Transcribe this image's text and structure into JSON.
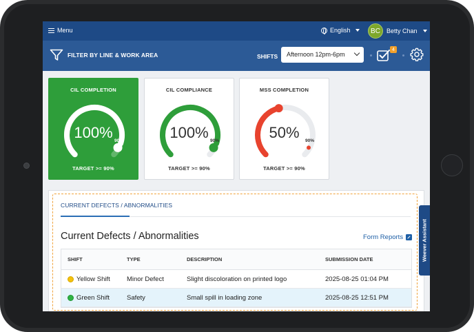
{
  "topbar": {
    "menu_label": "Menu",
    "language_label": "English",
    "user_initials": "BC",
    "user_name": "Betty Chan"
  },
  "filterbar": {
    "filter_label": "FILTER BY LINE & WORK AREA",
    "shifts_label": "SHIFTS",
    "shift_selected": "Afternoon 12pm-6pm",
    "task_badge": "4"
  },
  "cards": [
    {
      "title": "CIL COMPLETION",
      "value": "100%",
      "progress": 1.0,
      "target_marker": "90%",
      "target": "TARGET >= 90%",
      "color": "#ffffff",
      "background": "#2e9e3a"
    },
    {
      "title": "CIL COMPLIANCE",
      "value": "100%",
      "progress": 1.0,
      "target_marker": "90%",
      "target": "TARGET >= 90%",
      "color": "#2e9e3a",
      "background": "#ffffff"
    },
    {
      "title": "MSS COMPLETION",
      "value": "50%",
      "progress": 0.5,
      "target_marker": "90%",
      "target": "TARGET >= 90%",
      "color": "#e8432e",
      "background": "#ffffff"
    }
  ],
  "defects": {
    "tab_label": "CURRENT DEFECTS / ABNORMALITIES",
    "title": "Current Defects / Abnormalities",
    "form_reports": "Form Reports",
    "columns": [
      "SHIFT",
      "TYPE",
      "DESCRIPTION",
      "SUBMISSION DATE"
    ],
    "rows": [
      {
        "shift": "Yellow Shift",
        "shift_color": "#f4c20d",
        "type": "Minor Defect",
        "description": "Slight discoloration on printed logo",
        "date": "2025-08-25 01:04 PM"
      },
      {
        "shift": "Green Shift",
        "shift_color": "#2fb344",
        "type": "Safety",
        "description": "Small spill in loading zone",
        "date": "2025-08-25 12:51 PM"
      }
    ]
  },
  "assistant": {
    "label": "Weever Assistant"
  }
}
